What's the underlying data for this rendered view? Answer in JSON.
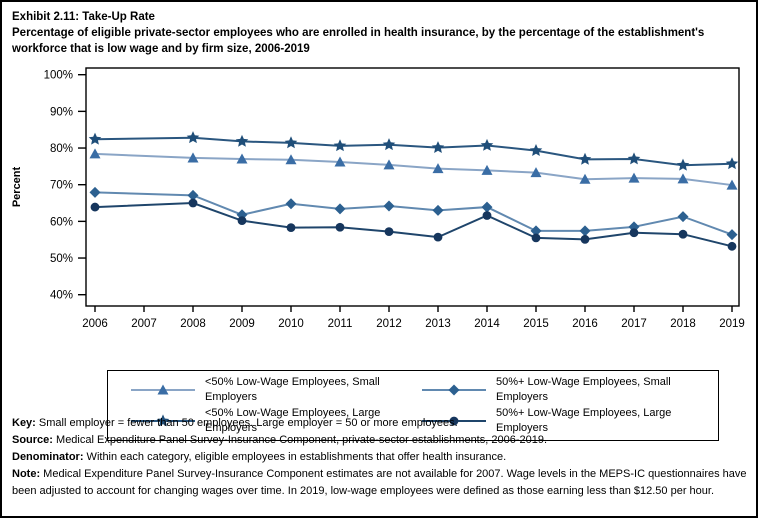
{
  "chart_data": {
    "type": "line",
    "title": "Exhibit 2.11: Take-Up Rate",
    "subtitle": "Percentage of eligible private-sector employees who are enrolled in health insurance, by the percentage of the establishment's workforce that is low wage and by firm size, 2006-2019",
    "ylabel": "Percent",
    "xlabel": "",
    "ylim": [
      40,
      100
    ],
    "ytick_values": [
      100,
      90,
      80,
      70,
      60,
      50,
      40
    ],
    "ytick_labels": [
      "100%",
      "90%",
      "80%",
      "70%",
      "60%",
      "50%",
      "40%"
    ],
    "x": [
      2006,
      2007,
      2008,
      2009,
      2010,
      2011,
      2012,
      2013,
      2014,
      2015,
      2016,
      2017,
      2018,
      2019
    ],
    "grid": false,
    "legend_position": "bottom-box",
    "data_gap_note": "no estimates for 2007",
    "series": [
      {
        "name": "<50% Low-Wage Employees, Small Employers",
        "marker": "triangle",
        "marker_color": "#3a6da5",
        "line_color": "#8aa5c6",
        "values": [
          78.4,
          null,
          77.3,
          77.0,
          76.8,
          76.2,
          75.4,
          74.4,
          73.9,
          73.3,
          71.5,
          71.8,
          71.6,
          69.9
        ]
      },
      {
        "name": "50%+ Low-Wage Employees, Small Employers",
        "marker": "diamond",
        "marker_color": "#2c6090",
        "line_color": "#6189b0",
        "values": [
          67.9,
          null,
          67.1,
          61.8,
          64.8,
          63.4,
          64.2,
          63.0,
          63.9,
          57.4,
          57.4,
          58.5,
          61.3,
          56.4
        ]
      },
      {
        "name": "<50% Low-Wage Employees, Large Employers",
        "marker": "star",
        "marker_color": "#1f4e79",
        "line_color": "#2a567f",
        "values": [
          82.4,
          null,
          82.8,
          81.8,
          81.4,
          80.6,
          80.9,
          80.1,
          80.7,
          79.3,
          76.9,
          77.0,
          75.3,
          75.7
        ]
      },
      {
        "name": "50%+ Low-Wage Employees, Large Employers",
        "marker": "circle",
        "marker_color": "#16365d",
        "line_color": "#1f456b",
        "values": [
          63.9,
          null,
          65.0,
          60.2,
          58.3,
          58.4,
          57.2,
          55.7,
          61.6,
          55.5,
          55.1,
          56.9,
          56.5,
          53.2
        ]
      }
    ]
  },
  "footer": {
    "key": {
      "label": "Key:",
      "text": " Small employer = fewer than 50 employees. Large employer = 50 or more employees."
    },
    "source": {
      "label": "Source:",
      "text": " Medical Expenditure Panel Survey-Insurance Component, private-sector establishments, 2006-2019."
    },
    "denominator": {
      "label": "Denominator:",
      "text": " Within each category, eligible employees in establishments that offer health insurance."
    },
    "note": {
      "label": "Note:",
      "text": " Medical Expenditure Panel Survey-Insurance Component estimates are not available for 2007. Wage levels in the MEPS-IC questionnaires have been adjusted to account for changing wages over time. In 2019, low-wage employees were defined as those earning less than $12.50 per hour."
    }
  }
}
